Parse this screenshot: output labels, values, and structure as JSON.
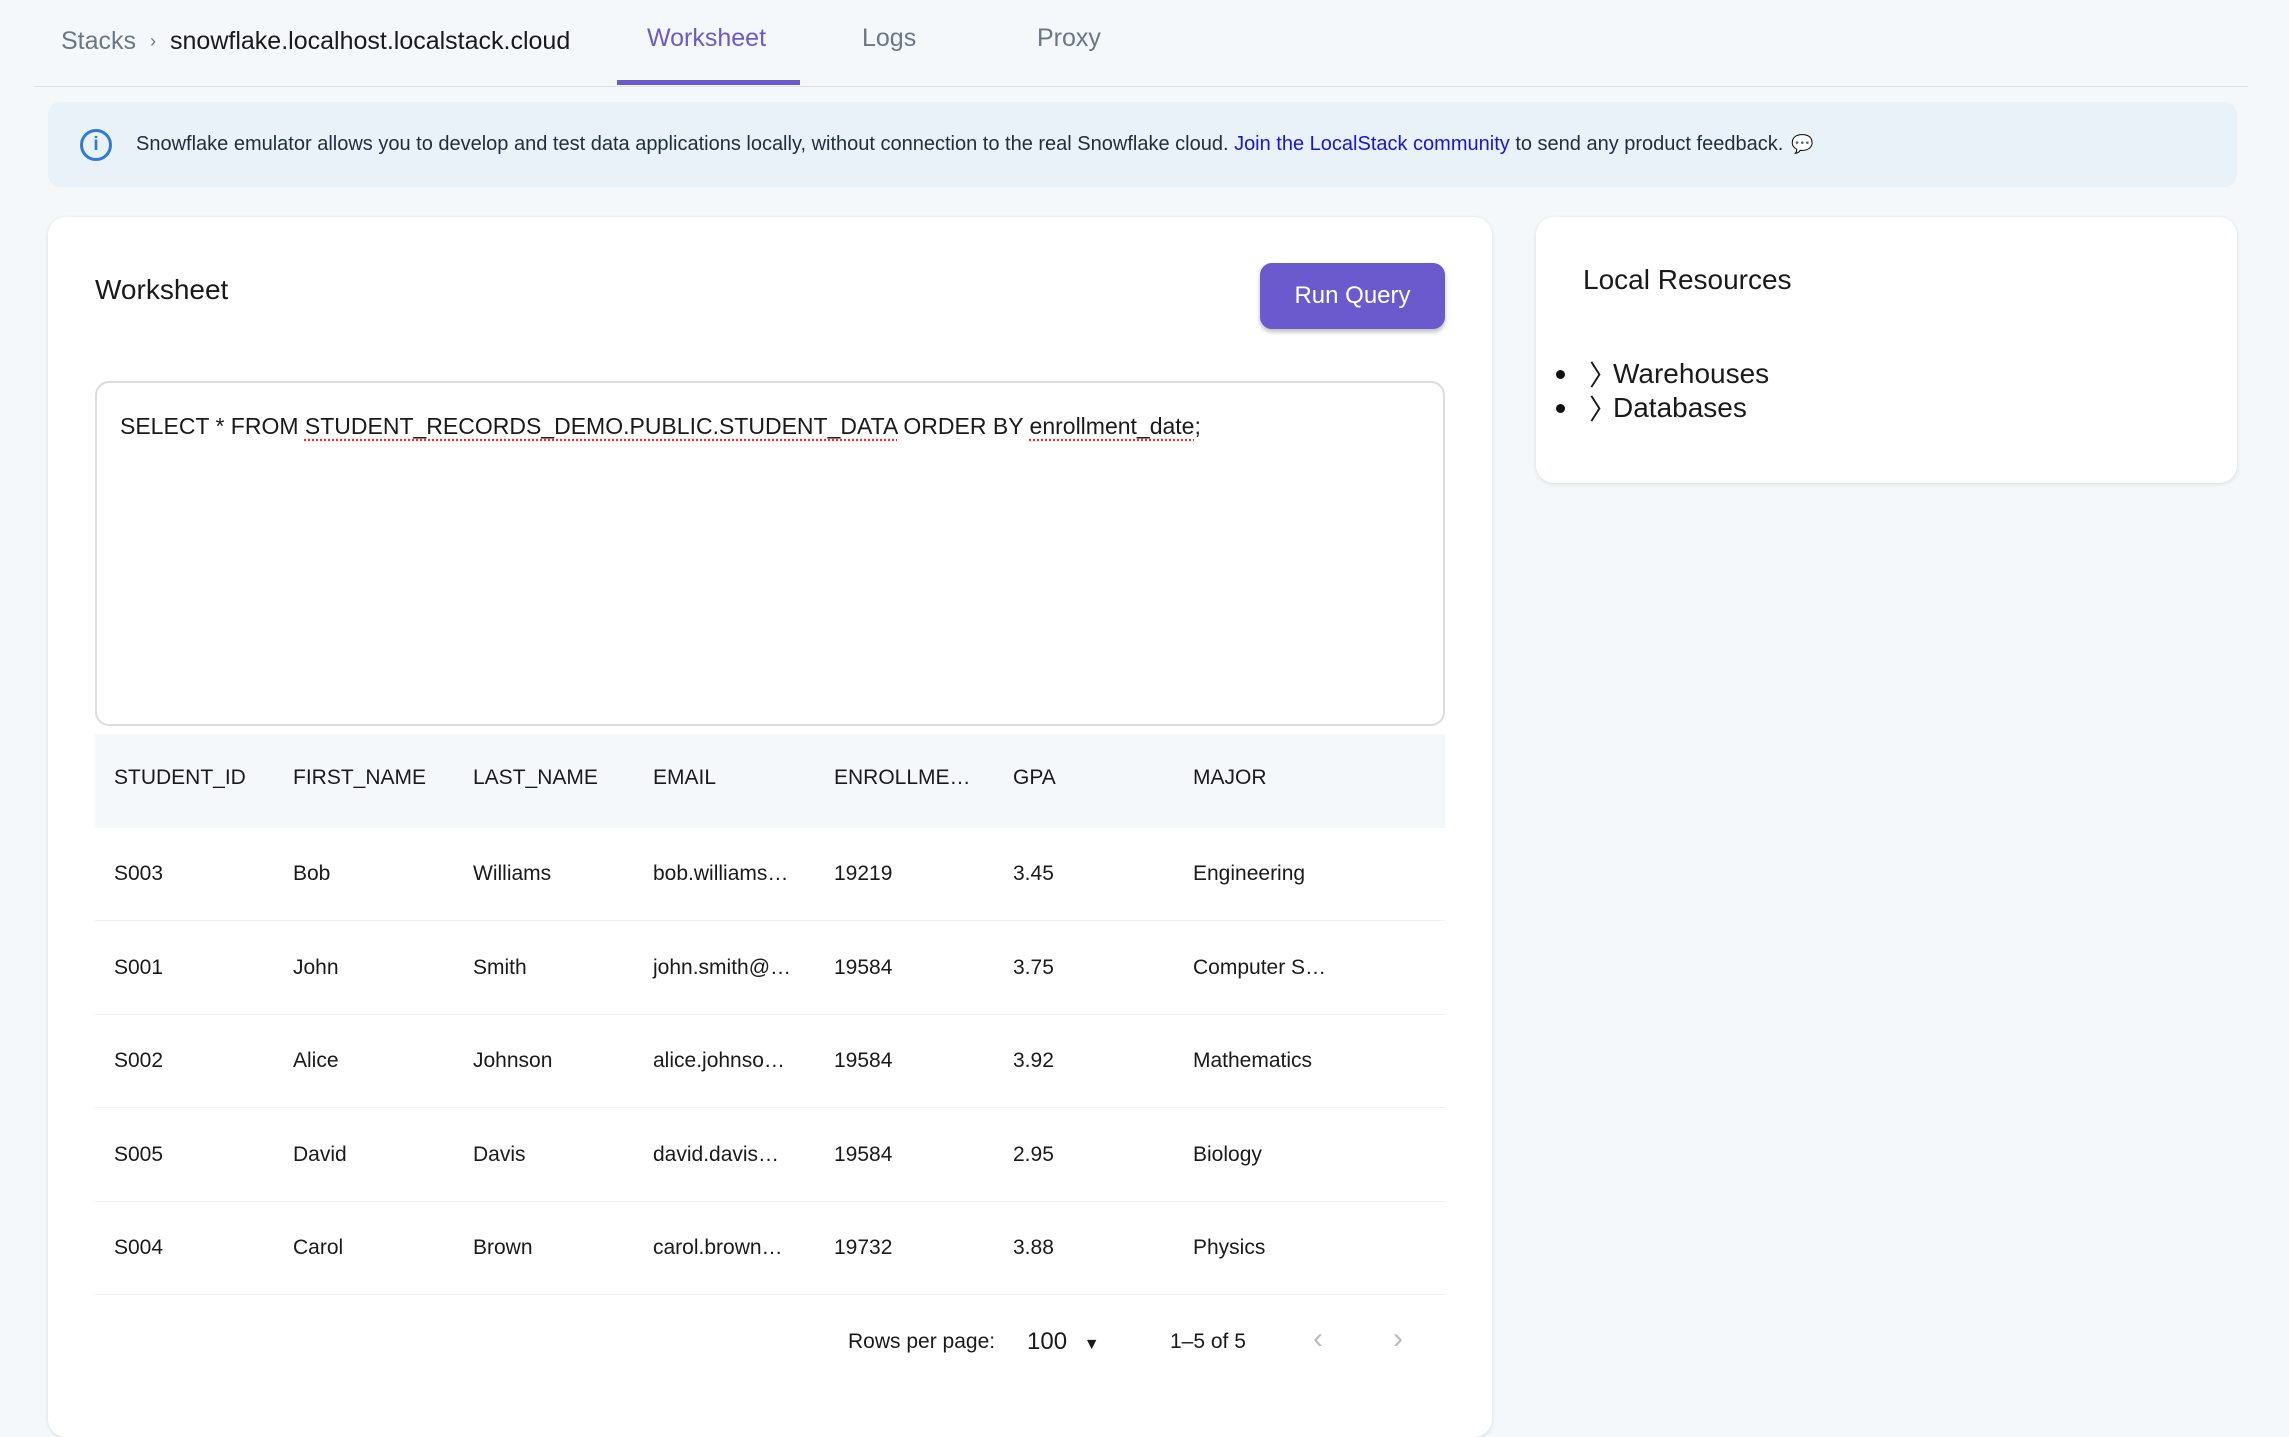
{
  "breadcrumb": {
    "root": "Stacks",
    "current": "snowflake.localhost.localstack.cloud"
  },
  "tabs": [
    {
      "label": "Worksheet",
      "active": true
    },
    {
      "label": "Logs"
    },
    {
      "label": "Proxy"
    }
  ],
  "banner": {
    "text": "Snowflake emulator allows you to develop and test data applications locally, without connection to the real Snowflake cloud.",
    "link": "Join the LocalStack community",
    "suffix": "to send any product feedback."
  },
  "worksheet": {
    "title": "Worksheet",
    "run_label": "Run Query",
    "query": {
      "p1": "SELECT * FROM ",
      "p2": "STUDENT_RECORDS_DEMO.PUBLIC.STUDENT_DATA",
      "p3": " ORDER BY ",
      "p4": "enrollment_date",
      "p5": ";"
    }
  },
  "table": {
    "columns": [
      "STUDENT_ID",
      "FIRST_NAME",
      "LAST_NAME",
      "EMAIL",
      "ENROLLME…",
      "GPA",
      "MAJOR"
    ],
    "rows": [
      [
        "S003",
        "Bob",
        "Williams",
        "bob.williams…",
        "19219",
        "3.45",
        "Engineering"
      ],
      [
        "S001",
        "John",
        "Smith",
        "john.smith@…",
        "19584",
        "3.75",
        "Computer S…"
      ],
      [
        "S002",
        "Alice",
        "Johnson",
        "alice.johnso…",
        "19584",
        "3.92",
        "Mathematics"
      ],
      [
        "S005",
        "David",
        "Davis",
        "david.davis…",
        "19584",
        "2.95",
        "Biology"
      ],
      [
        "S004",
        "Carol",
        "Brown",
        "carol.brown…",
        "19732",
        "3.88",
        "Physics"
      ]
    ]
  },
  "pagination": {
    "rows_per_page_label": "Rows per page:",
    "rows_per_page": "100",
    "range": "1–5 of 5"
  },
  "resources": {
    "title": "Local Resources",
    "items": [
      "Warehouses",
      "Databases"
    ]
  },
  "colors": {
    "accent": "#6a5acd",
    "link": "#1515e0",
    "info": "#2f7bd8"
  }
}
